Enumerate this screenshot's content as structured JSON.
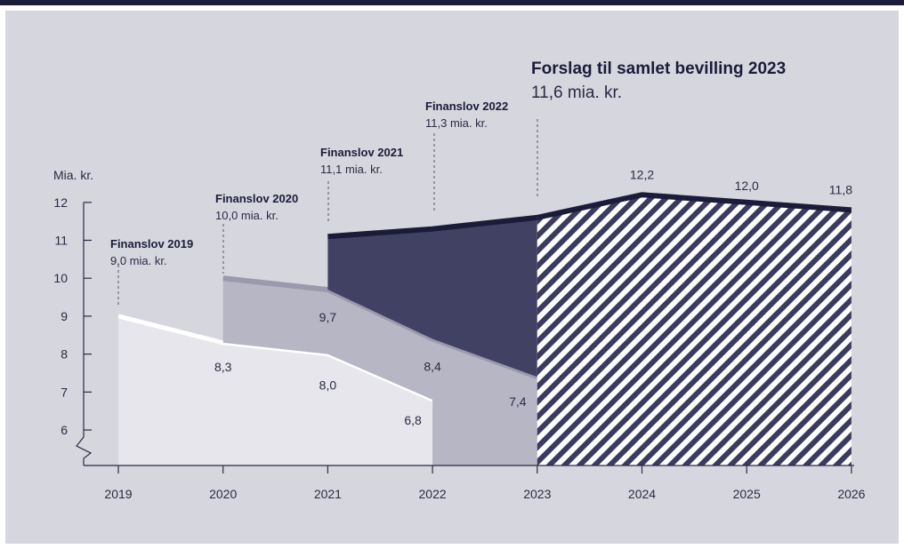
{
  "chart_data": {
    "type": "area",
    "ylabel": "Mia. kr.",
    "ylim": [
      5,
      12.5
    ],
    "yticks": [
      "6",
      "7",
      "8",
      "9",
      "10",
      "11",
      "12"
    ],
    "x": [
      "2019",
      "2020",
      "2021",
      "2022",
      "2023",
      "2024",
      "2025",
      "2026"
    ],
    "series": [
      {
        "name": "Finanslov 2019",
        "x": [
          2019,
          2020,
          2021,
          2022
        ],
        "values": [
          9.0,
          8.3,
          8.0,
          6.8
        ],
        "label_title": "Finanslov 2019",
        "label_value": "9,0 mia. kr.",
        "color": "#e6e6ec",
        "line_color": "#ffffff"
      },
      {
        "name": "Finanslov 2020",
        "x": [
          2020,
          2021,
          2022,
          2023
        ],
        "values": [
          10.0,
          9.7,
          8.4,
          7.4
        ],
        "label_title": "Finanslov 2020",
        "label_value": "10,0 mia. kr.",
        "color": "#b6b6c4",
        "line_color": "#9a9aac"
      },
      {
        "name": "Finanslov 2021",
        "x": [
          2021,
          2022,
          2023
        ],
        "values": [
          11.1,
          8.4,
          7.4
        ],
        "label_title": "Finanslov 2021",
        "label_value": "11,1 mia. kr.",
        "color": "#414263",
        "line_color": "#1b1c3a"
      },
      {
        "name": "Finanslov 2022",
        "x": [
          2021,
          2022,
          2023
        ],
        "values": [
          11.1,
          11.3,
          11.6
        ],
        "label_title": "Finanslov 2022",
        "label_value": "11,3 mia. kr."
      },
      {
        "name": "Forslag til samlet bevilling 2023",
        "x": [
          2023,
          2024,
          2025,
          2026
        ],
        "values": [
          11.6,
          12.2,
          12.0,
          11.8
        ],
        "label_title": "Forslag til samlet bevilling 2023",
        "label_value": "11,6 mia. kr.",
        "color": "#414263",
        "line_color": "#1b1c3a",
        "pattern": "hatched"
      }
    ],
    "data_labels": [
      {
        "x": 2020,
        "y": 8.3,
        "text": "8,3"
      },
      {
        "x": 2021,
        "y": 8.0,
        "text": "8,0"
      },
      {
        "x": 2022,
        "y": 6.8,
        "text": "6,8"
      },
      {
        "x": 2021,
        "y": 9.7,
        "text": "9,7"
      },
      {
        "x": 2022,
        "y": 8.4,
        "text": "8,4"
      },
      {
        "x": 2023,
        "y": 7.4,
        "text": "7,4"
      },
      {
        "x": 2024,
        "y": 12.2,
        "text": "12,2"
      },
      {
        "x": 2025,
        "y": 12.0,
        "text": "12,0"
      },
      {
        "x": 2026,
        "y": 11.8,
        "text": "11,8"
      }
    ],
    "axis_break": true,
    "grid": false
  }
}
